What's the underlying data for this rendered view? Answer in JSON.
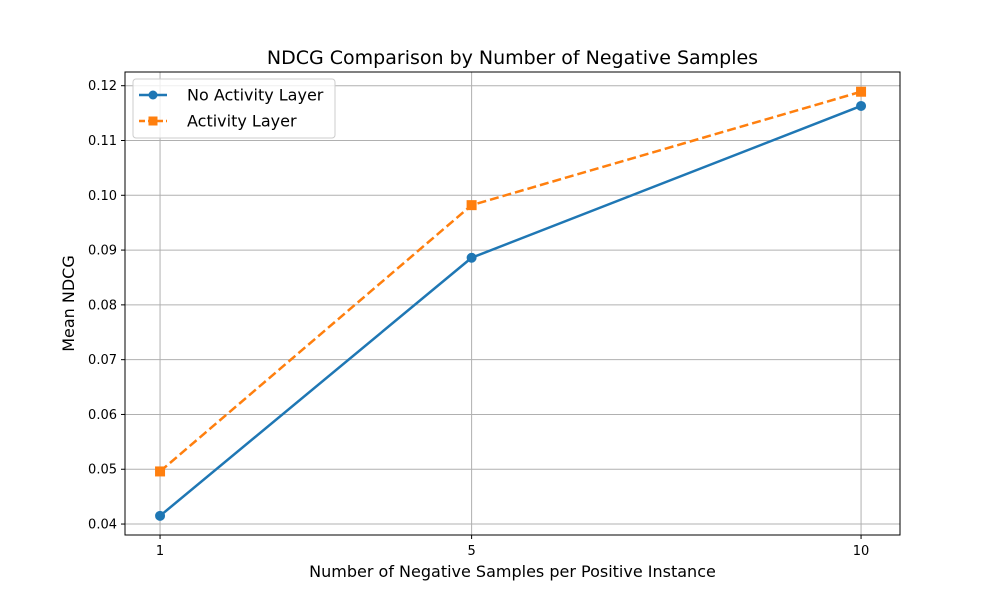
{
  "chart_data": {
    "type": "line",
    "title": "NDCG Comparison by Number of Negative Samples",
    "xlabel": "Number of Negative Samples per Positive Instance",
    "ylabel": "Mean NDCG",
    "x": [
      1,
      5,
      10
    ],
    "x_tick_labels": [
      "1",
      "5",
      "10"
    ],
    "xlim": [
      0.55,
      10.5
    ],
    "ylim": [
      0.038,
      0.1225
    ],
    "y_ticks": [
      0.04,
      0.05,
      0.06,
      0.07,
      0.08,
      0.09,
      0.1,
      0.11,
      0.12
    ],
    "y_tick_labels": [
      "0.04",
      "0.05",
      "0.06",
      "0.07",
      "0.08",
      "0.09",
      "0.10",
      "0.11",
      "0.12"
    ],
    "grid": true,
    "legend_position": "top-left",
    "series": [
      {
        "name": "No Activity Layer",
        "values": [
          0.0415,
          0.0886,
          0.1163
        ],
        "color": "#1f77b4",
        "line_style": "solid",
        "marker": "circle"
      },
      {
        "name": "Activity Layer",
        "values": [
          0.0496,
          0.0982,
          0.1189
        ],
        "color": "#ff7f0e",
        "line_style": "dashed",
        "marker": "square"
      }
    ]
  }
}
